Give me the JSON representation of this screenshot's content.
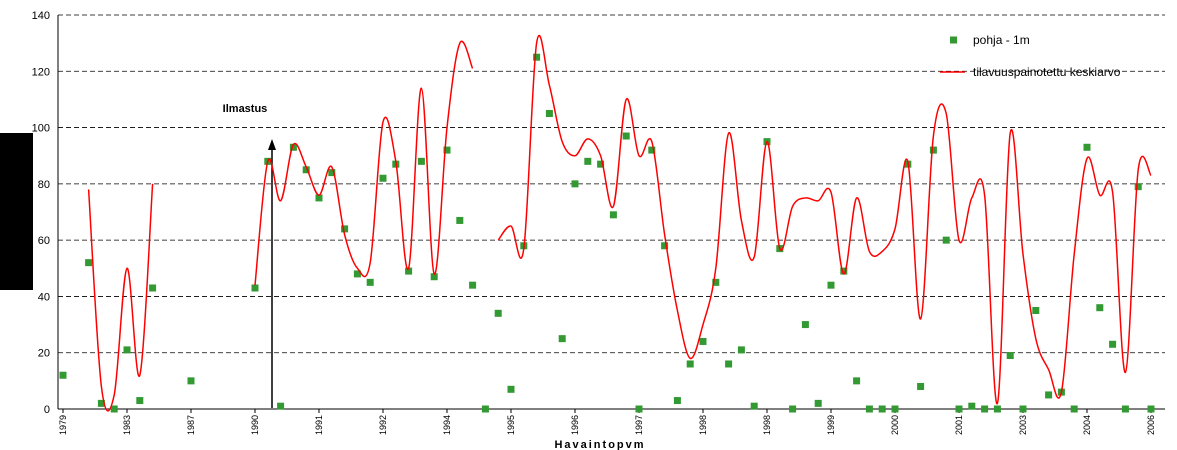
{
  "chart_data": {
    "type": "line",
    "x_label": "Havaintopvm",
    "annotation": "Ilmastus",
    "categories": [
      "1979",
      null,
      null,
      null,
      null,
      "1983",
      null,
      null,
      null,
      null,
      "1987",
      null,
      null,
      null,
      null,
      "1990",
      null,
      null,
      null,
      null,
      "1991",
      null,
      null,
      null,
      null,
      "1992",
      null,
      null,
      null,
      null,
      "1994",
      null,
      null,
      null,
      null,
      "1995",
      null,
      null,
      null,
      null,
      "1996",
      null,
      null,
      null,
      null,
      "1997",
      null,
      null,
      null,
      null,
      "1998",
      null,
      null,
      null,
      null,
      "1998",
      null,
      null,
      null,
      null,
      "1999",
      null,
      null,
      null,
      null,
      "2000",
      null,
      null,
      null,
      null,
      "2001",
      null,
      null,
      null,
      null,
      "2003",
      null,
      null,
      null,
      null,
      "2004",
      null,
      null,
      null,
      null,
      "2006"
    ],
    "series": [
      {
        "name": "pohja - 1m",
        "kind": "marker",
        "color": "#339933",
        "values": [
          12,
          null,
          52,
          2,
          0,
          21,
          3,
          43,
          null,
          null,
          10,
          null,
          null,
          null,
          null,
          43,
          88,
          1,
          93,
          85,
          75,
          84,
          64,
          48,
          45,
          82,
          87,
          49,
          88,
          47,
          92,
          67,
          44,
          0,
          34,
          7,
          58,
          125,
          105,
          25,
          80,
          88,
          87,
          69,
          97,
          0,
          92,
          58,
          3,
          16,
          24,
          45,
          16,
          21,
          1,
          95,
          57,
          0,
          30,
          2,
          44,
          49,
          10,
          0,
          0,
          0,
          87,
          8,
          92,
          60,
          0,
          1,
          0,
          0,
          19,
          0,
          35,
          5,
          6,
          0,
          93,
          36,
          23,
          0,
          79,
          0
        ]
      },
      {
        "name": "tilavuuspainotettu keskiarvo",
        "kind": "line",
        "color": "#ff0000",
        "values": [
          null,
          null,
          78,
          8,
          5,
          50,
          12,
          80,
          null,
          null,
          null,
          null,
          null,
          null,
          null,
          44,
          88,
          74,
          94,
          86,
          76,
          86,
          62,
          50,
          52,
          102,
          88,
          50,
          114,
          48,
          100,
          130,
          121,
          null,
          60,
          65,
          57,
          130,
          115,
          95,
          90,
          96,
          90,
          72,
          110,
          90,
          95,
          62,
          35,
          18,
          30,
          50,
          98,
          67,
          54,
          95,
          57,
          72,
          75,
          74,
          77,
          48,
          75,
          56,
          56,
          64,
          88,
          32,
          97,
          105,
          60,
          75,
          76,
          2,
          98,
          55,
          25,
          14,
          6,
          55,
          89,
          76,
          77,
          13,
          85,
          83
        ]
      }
    ],
    "ylim": [
      0,
      140
    ],
    "yticks": [
      0,
      20,
      40,
      60,
      80,
      100,
      120,
      140
    ],
    "grid": true,
    "legend": "top-right"
  }
}
